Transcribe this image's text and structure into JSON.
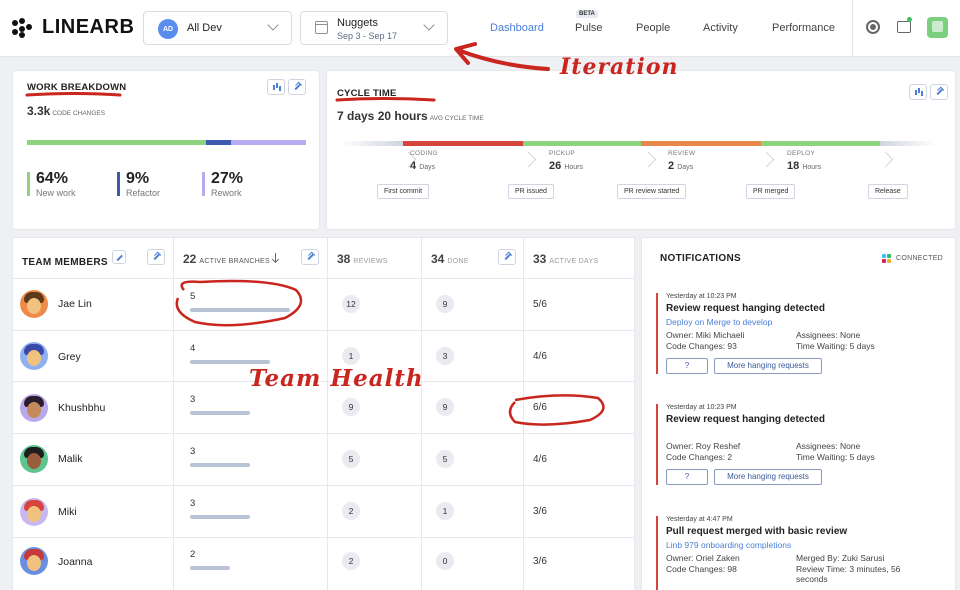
{
  "brand": {
    "logo_text": "LINEARB"
  },
  "team_selector": {
    "badge": "AD",
    "label": "All Dev"
  },
  "iteration_selector": {
    "name": "Nuggets",
    "dates": "Sep 3 - Sep 17"
  },
  "nav": {
    "items": [
      {
        "label": "Dashboard",
        "active": true
      },
      {
        "label": "Pulse",
        "badge": "BETA"
      },
      {
        "label": "People"
      },
      {
        "label": "Activity"
      },
      {
        "label": "Performance"
      }
    ]
  },
  "work_breakdown": {
    "title": "WORK BREAKDOWN",
    "total": "3.3k",
    "total_label": "CODE CHANGES",
    "segments": [
      {
        "value": "64%",
        "label": "New work",
        "share": 0.64,
        "color": "#8ed37e"
      },
      {
        "value": "9%",
        "label": "Refactor",
        "share": 0.09,
        "color": "#3e5ab0"
      },
      {
        "value": "27%",
        "label": "Rework",
        "share": 0.27,
        "color": "#b6aaf0"
      }
    ]
  },
  "cycle_time": {
    "title": "CYCLE TIME",
    "total": "7 days 20 hours",
    "total_label": "AVG CYCLE TIME",
    "stages": [
      {
        "name": "CODING",
        "value": "4",
        "unit": "Days",
        "color": "#d6453d"
      },
      {
        "name": "PICKUP",
        "value": "26",
        "unit": "Hours",
        "color": "#8ed37e"
      },
      {
        "name": "REVIEW",
        "value": "2",
        "unit": "Days",
        "color": "#e8874a"
      },
      {
        "name": "DEPLOY",
        "value": "18",
        "unit": "Hours",
        "color": "#8ed37e"
      }
    ],
    "events": [
      "First commit",
      "PR issued",
      "PR review started",
      "PR merged",
      "Release"
    ]
  },
  "team_table": {
    "title": "TEAM MEMBERS",
    "columns": [
      {
        "count": "22",
        "label": "ACTIVE BRANCHES"
      },
      {
        "count": "38",
        "label": "REVIEWS"
      },
      {
        "count": "34",
        "label": "DONE"
      },
      {
        "count": "33",
        "label": "ACTIVE DAYS"
      }
    ],
    "rows": [
      {
        "name": "Jae Lin",
        "branches": "5",
        "reviews": "12",
        "done": "9",
        "days": "5/6",
        "bar": 5
      },
      {
        "name": "Grey",
        "branches": "4",
        "reviews": "1",
        "done": "3",
        "days": "4/6",
        "bar": 4
      },
      {
        "name": "Khushbhu",
        "branches": "3",
        "reviews": "9",
        "done": "9",
        "days": "6/6",
        "bar": 3
      },
      {
        "name": "Malik",
        "branches": "3",
        "reviews": "5",
        "done": "5",
        "days": "4/6",
        "bar": 3
      },
      {
        "name": "Miki",
        "branches": "3",
        "reviews": "2",
        "done": "1",
        "days": "3/6",
        "bar": 3
      },
      {
        "name": "Joanna",
        "branches": "2",
        "reviews": "2",
        "done": "0",
        "days": "3/6",
        "bar": 2
      }
    ]
  },
  "notifications": {
    "title": "NOTIFICATIONS",
    "status": "CONNECTED",
    "items": [
      {
        "time": "Yesterday at 10:23 PM",
        "headline": "Review request hanging detected",
        "link": "Deploy on Merge to develop",
        "left": [
          "Owner: Miki Michaeli",
          "Code Changes: 93"
        ],
        "right": [
          "Assignees: None",
          "Time Waiting: 5 days"
        ],
        "btn_help": "?",
        "btn_more": "More hanging requests"
      },
      {
        "time": "Yesterday at 10:23 PM",
        "headline": "Review request hanging detected",
        "link": "",
        "left": [
          "Owner: Roy Reshef",
          "Code Changes: 2"
        ],
        "right": [
          "Assignees: None",
          "Time Waiting: 5 days"
        ],
        "btn_help": "?",
        "btn_more": "More hanging requests"
      },
      {
        "time": "Yesterday at 4:47 PM",
        "headline": "Pull request merged with basic review",
        "link": "Linb 979 onboarding completions",
        "left": [
          "Owner: Oriel Zaken",
          "Code Changes: 98"
        ],
        "right": [
          "Merged By: Zuki Sarusi",
          "Review Time: 3 minutes, 56 seconds"
        ]
      }
    ]
  },
  "annotations": {
    "iteration": "Iteration",
    "team_health": "Team Health"
  },
  "colors": {
    "accent": "#4a7fd6",
    "annotation": "#c8261f"
  }
}
